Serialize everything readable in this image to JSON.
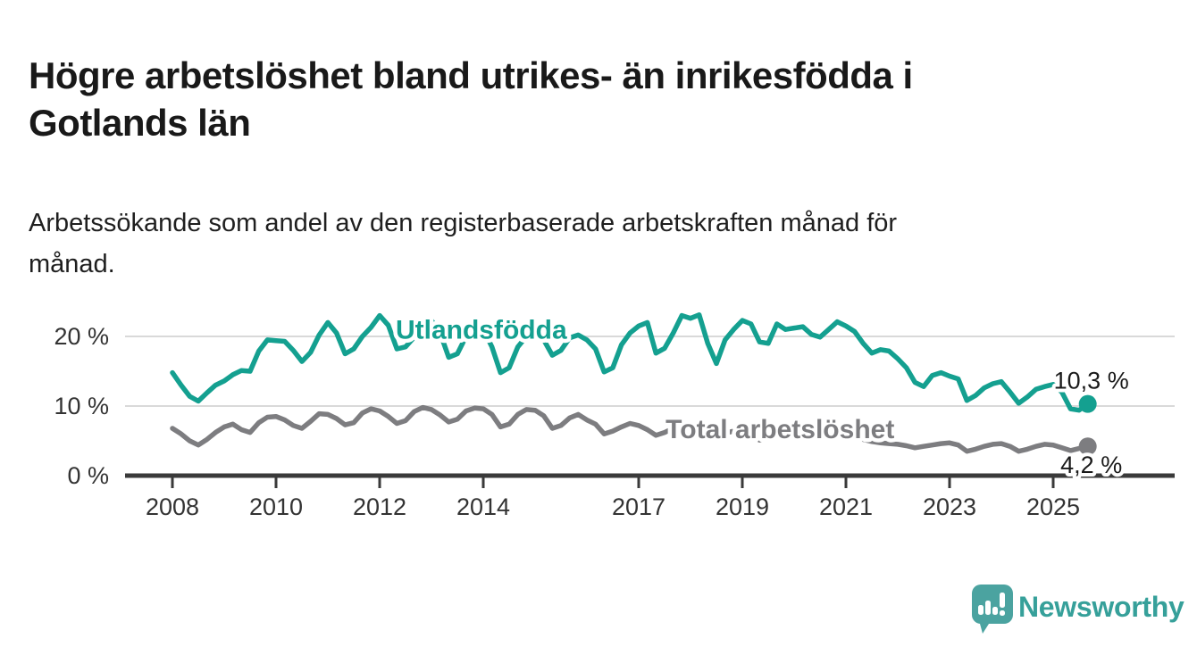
{
  "header": {
    "title_line1": "Högre arbetslöshet bland utrikes- än inrikesfödda i",
    "title_line2": "Gotlands län",
    "subtitle_line1": "Arbetssökande som andel av den registerbaserade arbetskraften månad för",
    "subtitle_line2": "månad."
  },
  "footer": {
    "brand": "Newsworthy",
    "logo_icon": "bar-chart-speech-bubble-icon",
    "logo_color": "#4ba3a0"
  },
  "chart_data": {
    "type": "line",
    "title": "Högre arbetslöshet bland utrikes- än inrikesfödda i Gotlands län",
    "subtitle": "Arbetssökande som andel av den registerbaserade arbetskraften månad för månad.",
    "x_start": 2008.0,
    "x_step": 0.16667,
    "xlim": [
      2007.1,
      2026.1
    ],
    "ylim": [
      0,
      24.5
    ],
    "grid": "horizontal",
    "grid_color": "#d9d9d9",
    "axis_color": "#3a3a3a",
    "x_ticks": [
      2008,
      2010,
      2012,
      2014,
      2017,
      2019,
      2021,
      2023,
      2025
    ],
    "x_tick_labels": [
      "2008",
      "2010",
      "2012",
      "2014",
      "2017",
      "2019",
      "2021",
      "2023",
      "2025"
    ],
    "y_ticks": [
      0,
      10,
      20
    ],
    "y_tick_labels": [
      "0 %",
      "10 %",
      "20 %"
    ],
    "series": [
      {
        "name": "Utlandsfödda",
        "color": "#14a090",
        "end_label": "10,3 %",
        "end_label_position": "above",
        "label_x": 2012.31,
        "label_y": 19.7,
        "values": [
          14.8,
          13.0,
          11.4,
          10.7,
          11.9,
          13.0,
          13.6,
          14.5,
          15.1,
          15.0,
          17.9,
          19.5,
          19.4,
          19.3,
          18.0,
          16.4,
          17.7,
          20.2,
          22.0,
          20.5,
          17.5,
          18.2,
          20.0,
          21.3,
          23.0,
          21.6,
          18.2,
          18.5,
          19.9,
          20.4,
          22.3,
          20.5,
          17.0,
          17.5,
          20.0,
          21.5,
          21.0,
          18.5,
          14.8,
          15.5,
          18.5,
          20.0,
          20.5,
          19.5,
          17.3,
          18.0,
          19.8,
          20.2,
          19.5,
          18.2,
          14.9,
          15.5,
          18.8,
          20.5,
          21.5,
          22.0,
          17.6,
          18.3,
          20.5,
          23.0,
          22.6,
          23.1,
          19.0,
          16.1,
          19.5,
          21.0,
          22.3,
          21.8,
          19.2,
          19.0,
          21.8,
          21.0,
          21.2,
          21.4,
          20.3,
          19.9,
          21.0,
          22.1,
          21.5,
          20.7,
          19.0,
          17.6,
          18.1,
          17.9,
          16.8,
          15.5,
          13.4,
          12.8,
          14.4,
          14.8,
          14.3,
          13.9,
          10.8,
          11.5,
          12.6,
          13.2,
          13.5,
          12.0,
          10.4,
          11.3,
          12.4,
          12.8,
          13.1,
          12.0,
          9.6,
          9.4,
          10.3
        ]
      },
      {
        "name": "Total arbetslöshet",
        "color": "#7d7d80",
        "end_label": "4,2 %",
        "end_label_position": "below",
        "label_x": 2017.52,
        "label_y": 5.4,
        "values": [
          6.8,
          6.0,
          5.0,
          4.4,
          5.2,
          6.2,
          7.0,
          7.4,
          6.6,
          6.2,
          7.6,
          8.4,
          8.5,
          8.0,
          7.2,
          6.8,
          7.8,
          8.9,
          8.8,
          8.2,
          7.3,
          7.6,
          9.0,
          9.6,
          9.3,
          8.5,
          7.5,
          7.9,
          9.2,
          9.8,
          9.5,
          8.7,
          7.7,
          8.1,
          9.3,
          9.7,
          9.6,
          8.8,
          7.0,
          7.4,
          8.8,
          9.5,
          9.4,
          8.6,
          6.8,
          7.2,
          8.3,
          8.8,
          8.0,
          7.4,
          6.0,
          6.4,
          7.0,
          7.5,
          7.2,
          6.6,
          5.8,
          6.2,
          6.8,
          7.0,
          6.8,
          6.3,
          5.4,
          5.7,
          6.1,
          6.4,
          6.2,
          5.8,
          5.1,
          5.4,
          5.8,
          6.1,
          6.3,
          6.6,
          7.0,
          6.8,
          6.5,
          6.3,
          6.2,
          5.8,
          5.2,
          4.9,
          4.7,
          4.6,
          4.5,
          4.3,
          4.0,
          4.2,
          4.4,
          4.6,
          4.7,
          4.4,
          3.5,
          3.8,
          4.2,
          4.5,
          4.6,
          4.2,
          3.5,
          3.8,
          4.2,
          4.5,
          4.4,
          4.0,
          3.6,
          3.9,
          4.2
        ]
      }
    ]
  }
}
